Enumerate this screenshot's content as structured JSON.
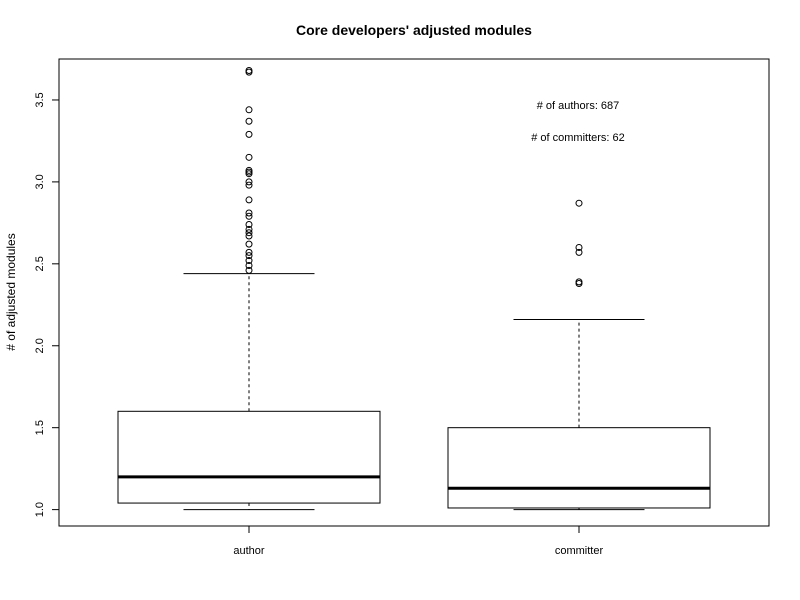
{
  "chart_data": {
    "type": "boxplot",
    "title": "Core developers' adjusted modules",
    "xlabel": "",
    "ylabel": "# of adjusted modules",
    "ylim": [
      0.9,
      3.75
    ],
    "y_ticks": [
      1.0,
      1.5,
      2.0,
      2.5,
      3.0,
      3.5
    ],
    "y_tick_labels": [
      "1.0",
      "1.5",
      "2.0",
      "2.5",
      "3.0",
      "3.5"
    ],
    "grid": false,
    "categories": [
      "author",
      "committer"
    ],
    "boxes": [
      {
        "name": "author",
        "whisker_low": 1.0,
        "q1": 1.04,
        "median": 1.2,
        "q3": 1.6,
        "whisker_high": 2.44,
        "outliers": [
          2.46,
          2.49,
          2.52,
          2.55,
          2.57,
          2.62,
          2.67,
          2.69,
          2.71,
          2.74,
          2.79,
          2.81,
          2.89,
          2.98,
          3.0,
          3.05,
          3.06,
          3.07,
          3.15,
          3.29,
          3.37,
          3.44,
          3.67,
          3.68
        ]
      },
      {
        "name": "committer",
        "whisker_low": 1.0,
        "q1": 1.01,
        "median": 1.13,
        "q3": 1.5,
        "whisker_high": 2.16,
        "outliers": [
          2.38,
          2.39,
          2.57,
          2.6,
          2.87
        ]
      }
    ],
    "annotations": [
      "# of authors: 687",
      "# of committers: 62"
    ]
  }
}
